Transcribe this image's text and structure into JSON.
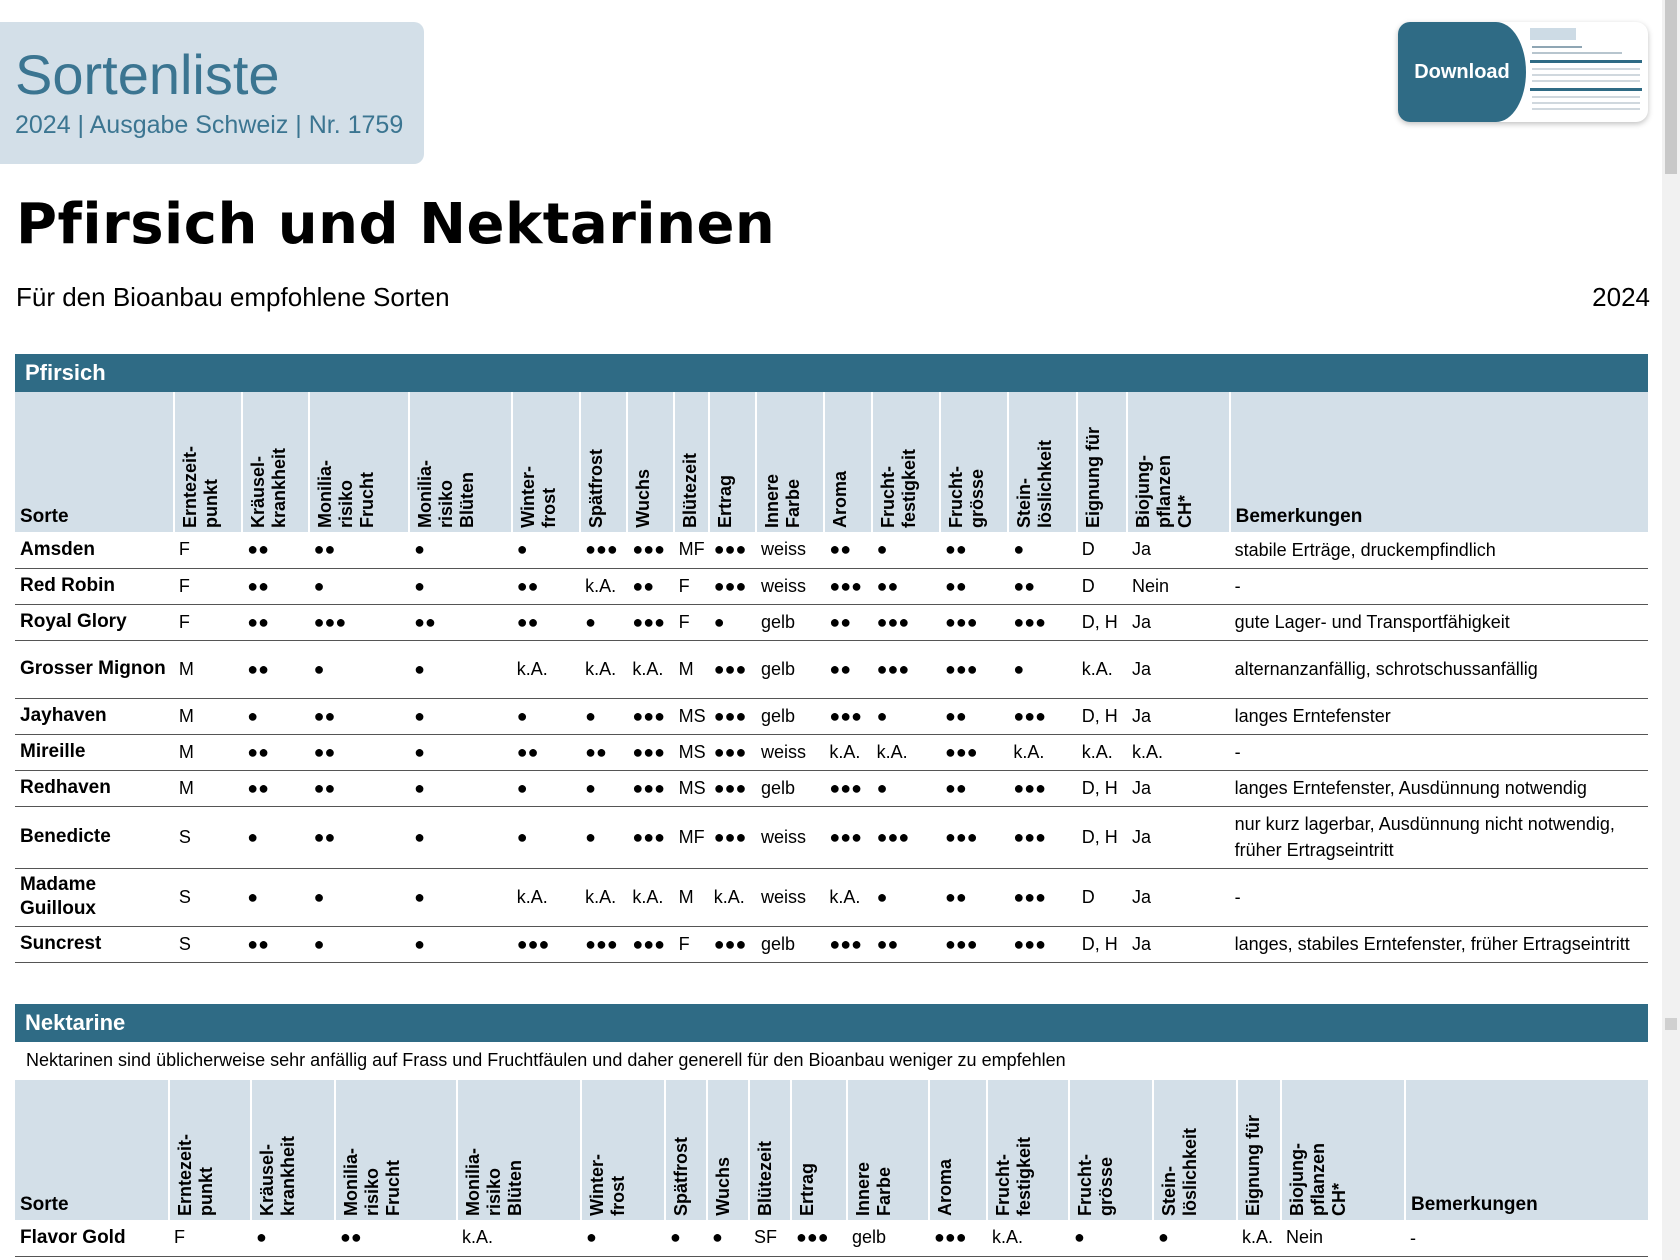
{
  "header": {
    "title": "Sortenliste",
    "subtitle": "2024 | Ausgabe Schweiz | Nr. 1759"
  },
  "download": {
    "label": "Download"
  },
  "page": {
    "title": "Pfirsich und Nektarinen",
    "subtitle": "Für den Bioanbau empfohlene Sorten",
    "year": "2024"
  },
  "columns": [
    "Sorte",
    "Erntezeit-\npunkt",
    "Kräusel-\nkrankheit",
    "Monilia-\nrisiko\nFrucht",
    "Monilia-\nrisiko\nBlüten",
    "Winter-\nfrost",
    "Spätfrost",
    "Wuchs",
    "Blütezeit",
    "Ertrag",
    "Innere\nFarbe",
    "Aroma",
    "Frucht-\nfestigkeit",
    "Frucht-\ngrösse",
    "Stein-\nlöslichkeit",
    "Eignung für",
    "Biojung-\npflanzen\nCH*",
    "Bemerkungen"
  ],
  "pfirsich": {
    "section_title": "Pfirsich",
    "rows": [
      [
        "Amsden",
        "F",
        "●●",
        "●●",
        "●",
        "●",
        "●●●",
        "●●●",
        "MF",
        "●●●",
        "weiss",
        "●●",
        "●",
        "●●",
        "●",
        "D",
        "Ja",
        "stabile Erträge, druckempfindlich"
      ],
      [
        "Red Robin",
        "F",
        "●●",
        "●",
        "●",
        "●●",
        "k.A.",
        "●●",
        "F",
        "●●●",
        "weiss",
        "●●●",
        "●●",
        "●●",
        "●●",
        "D",
        "Nein",
        "-"
      ],
      [
        "Royal Glory",
        "F",
        "●●",
        "●●●",
        "●●",
        "●●",
        "●",
        "●●●",
        "F",
        "●",
        "gelb",
        "●●",
        "●●●",
        "●●●",
        "●●●",
        "D, H",
        "Ja",
        "gute Lager- und Transportfähigkeit"
      ],
      [
        "Grosser Mignon",
        "M",
        "●●",
        "●",
        "●",
        "k.A.",
        "k.A.",
        "k.A.",
        "M",
        "●●●",
        "gelb",
        "●●",
        "●●●",
        "●●●",
        "●",
        "k.A.",
        "Ja",
        "alternanzanfällig, schrotschussanfällig"
      ],
      [
        "Jayhaven",
        "M",
        "●",
        "●●",
        "●",
        "●",
        "●",
        "●●●",
        "MS",
        "●●●",
        "gelb",
        "●●●",
        "●",
        "●●",
        "●●●",
        "D, H",
        "Ja",
        "langes Erntefenster"
      ],
      [
        "Mireille",
        "M",
        "●●",
        "●●",
        "●",
        "●●",
        "●●",
        "●●●",
        "MS",
        "●●●",
        "weiss",
        "k.A.",
        "k.A.",
        "●●●",
        "k.A.",
        "k.A.",
        "k.A.",
        "-"
      ],
      [
        "Redhaven",
        "M",
        "●●",
        "●●",
        "●",
        "●",
        "●",
        "●●●",
        "MS",
        "●●●",
        "gelb",
        "●●●",
        "●",
        "●●",
        "●●●",
        "D, H",
        "Ja",
        "langes Erntefenster, Ausdünnung notwendig"
      ],
      [
        "Benedicte",
        "S",
        "●",
        "●●",
        "●",
        "●",
        "●",
        "●●●",
        "MF",
        "●●●",
        "weiss",
        "●●●",
        "●●●",
        "●●●",
        "●●●",
        "D, H",
        "Ja",
        "nur kurz lagerbar, Ausdünnung nicht notwendig, früher Ertragseintritt"
      ],
      [
        "Madame Guilloux",
        "S",
        "●",
        "●",
        "●",
        "k.A.",
        "k.A.",
        "k.A.",
        "M",
        "k.A.",
        "weiss",
        "k.A.",
        "●",
        "●●",
        "●●●",
        "D",
        "Ja",
        "-"
      ],
      [
        "Suncrest",
        "S",
        "●●",
        "●",
        "●",
        "●●●",
        "●●●",
        "●●●",
        "F",
        "●●●",
        "gelb",
        "●●●",
        "●●",
        "●●●",
        "●●●",
        "D, H",
        "Ja",
        "langes, stabiles Erntefenster, früher Ertragseintritt"
      ]
    ]
  },
  "nektarine": {
    "section_title": "Nektarine",
    "note": "Nektarinen sind üblicherweise sehr anfällig auf Frass und Fruchtfäulen und daher generell für den Bioanbau weniger zu empfehlen",
    "rows": [
      [
        "Flavor Gold",
        "F",
        "●",
        "●●",
        "k.A.",
        "●",
        "●",
        "●",
        "SF",
        "●●●",
        "gelb",
        "●●●",
        "k.A.",
        "●",
        "●",
        "k.A.",
        "Nein",
        "-"
      ]
    ]
  }
}
